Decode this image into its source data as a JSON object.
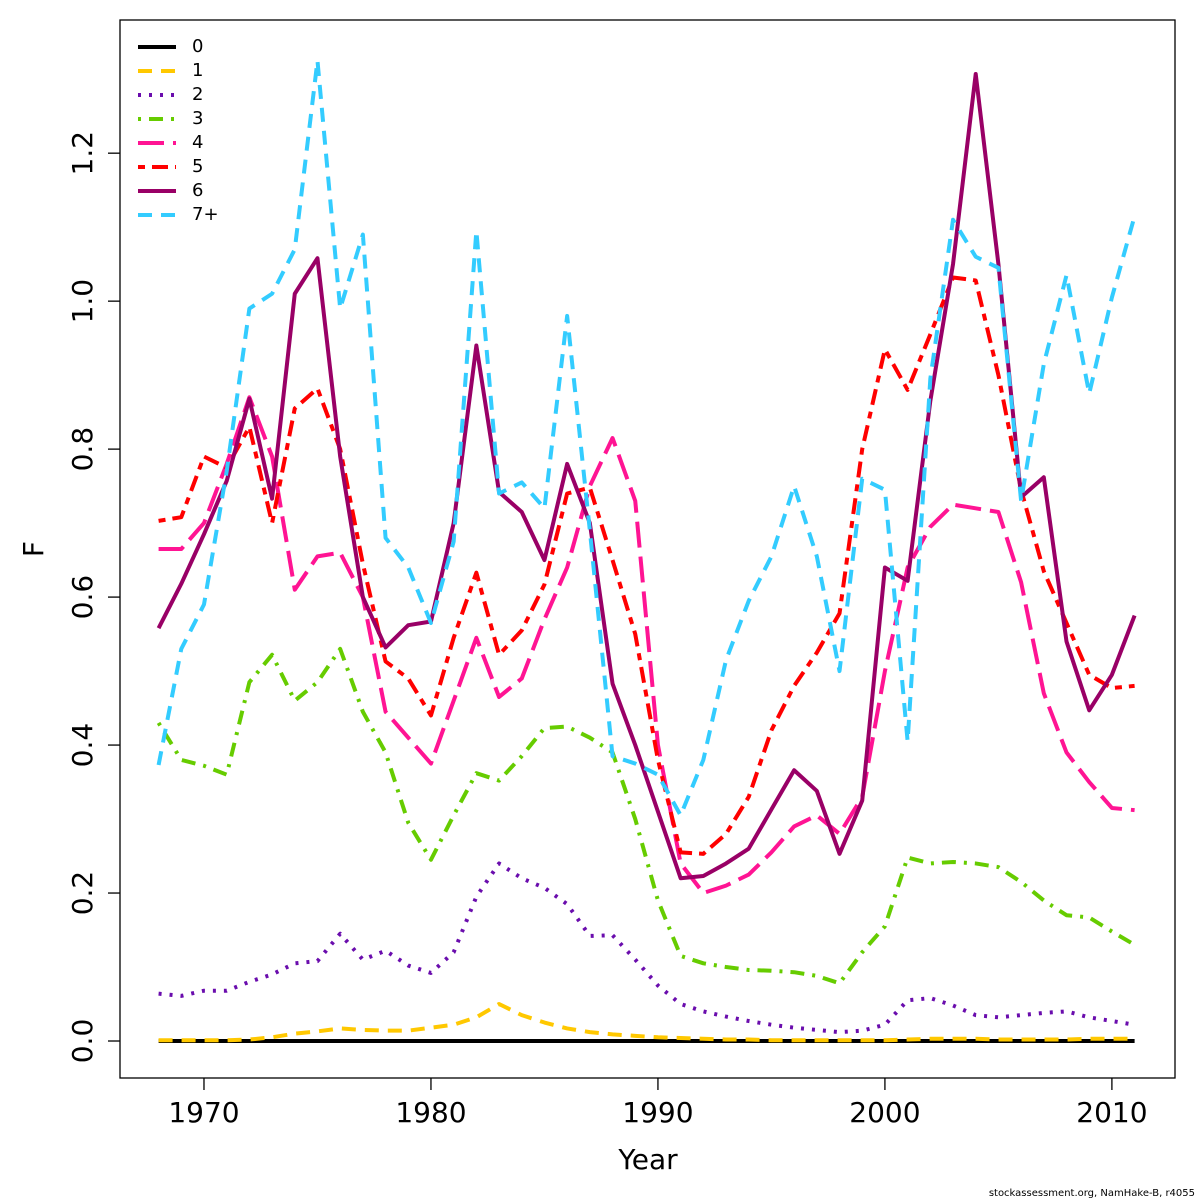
{
  "chart_data": {
    "type": "line",
    "xlabel": "Year",
    "ylabel": "F",
    "footer": "stockassessment.org, NamHake-B, r4055",
    "x": [
      1968,
      1969,
      1970,
      1971,
      1972,
      1973,
      1974,
      1975,
      1976,
      1977,
      1978,
      1979,
      1980,
      1981,
      1982,
      1983,
      1984,
      1985,
      1986,
      1987,
      1988,
      1989,
      1990,
      1991,
      1992,
      1993,
      1994,
      1995,
      1996,
      1997,
      1998,
      1999,
      2000,
      2001,
      2002,
      2003,
      2004,
      2005,
      2006,
      2007,
      2008,
      2009,
      2010,
      2011
    ],
    "xlim": [
      1966.3,
      2012.78
    ],
    "xticks": [
      1970,
      1980,
      1990,
      2000,
      2010
    ],
    "ylim": [
      -0.05,
      1.38
    ],
    "yticks": [
      {
        "value": 0,
        "label": "0.0"
      },
      0.2,
      0.4,
      0.6,
      0.8,
      {
        "value": 1,
        "label": "1.0"
      },
      1.2
    ],
    "legend": "top-left",
    "series": [
      {
        "name": "0",
        "color": "#000000",
        "linestyle": "solid",
        "values": [
          0,
          0,
          0,
          0,
          0,
          0,
          0,
          0,
          0,
          0,
          0,
          0,
          0,
          0,
          0,
          0,
          0,
          0,
          0,
          0,
          0,
          0,
          0,
          0,
          0,
          0,
          0,
          0,
          0,
          0,
          0,
          0,
          0,
          0,
          0,
          0,
          0,
          0,
          0,
          0,
          0,
          0,
          0,
          0
        ]
      },
      {
        "name": "1",
        "color": "#ffc800",
        "linestyle": "dashed",
        "values": [
          0.001,
          0.001,
          0.001,
          0.001,
          0.002,
          0.005,
          0.01,
          0.013,
          0.017,
          0.015,
          0.014,
          0.014,
          0.018,
          0.022,
          0.032,
          0.05,
          0.035,
          0.025,
          0.017,
          0.012,
          0.009,
          0.007,
          0.005,
          0.004,
          0.003,
          0.002,
          0.002,
          0.001,
          0.001,
          0.001,
          0.001,
          0.001,
          0.001,
          0.002,
          0.003,
          0.003,
          0.003,
          0.002,
          0.002,
          0.002,
          0.002,
          0.003,
          0.003,
          0.003
        ]
      },
      {
        "name": "2",
        "color": "#6a0dad",
        "linestyle": "dotted",
        "values": [
          0.064,
          0.061,
          0.068,
          0.068,
          0.08,
          0.09,
          0.105,
          0.108,
          0.145,
          0.11,
          0.122,
          0.102,
          0.092,
          0.12,
          0.195,
          0.24,
          0.22,
          0.207,
          0.185,
          0.142,
          0.143,
          0.11,
          0.075,
          0.05,
          0.04,
          0.033,
          0.027,
          0.022,
          0.018,
          0.015,
          0.012,
          0.014,
          0.022,
          0.055,
          0.058,
          0.048,
          0.035,
          0.032,
          0.035,
          0.038,
          0.04,
          0.032,
          0.027,
          0.022
        ]
      },
      {
        "name": "3",
        "color": "#66cc00",
        "linestyle": "dotdash",
        "values": [
          0.43,
          0.38,
          0.372,
          0.36,
          0.485,
          0.522,
          0.46,
          0.485,
          0.53,
          0.445,
          0.39,
          0.295,
          0.245,
          0.305,
          0.362,
          0.352,
          0.385,
          0.423,
          0.425,
          0.41,
          0.39,
          0.3,
          0.19,
          0.115,
          0.105,
          0.1,
          0.096,
          0.095,
          0.093,
          0.088,
          0.078,
          0.12,
          0.155,
          0.248,
          0.24,
          0.242,
          0.24,
          0.235,
          0.215,
          0.19,
          0.17,
          0.167,
          0.148,
          0.13
        ]
      },
      {
        "name": "4",
        "color": "#ff1493",
        "linestyle": "longdash",
        "values": [
          0.665,
          0.665,
          0.7,
          0.78,
          0.87,
          0.79,
          0.61,
          0.655,
          0.66,
          0.6,
          0.445,
          0.41,
          0.375,
          0.46,
          0.545,
          0.465,
          0.49,
          0.57,
          0.64,
          0.75,
          0.815,
          0.73,
          0.4,
          0.24,
          0.2,
          0.21,
          0.225,
          0.255,
          0.29,
          0.305,
          0.28,
          0.33,
          0.5,
          0.64,
          0.695,
          0.725,
          0.72,
          0.715,
          0.62,
          0.47,
          0.39,
          0.35,
          0.315,
          0.312
        ]
      },
      {
        "name": "5",
        "color": "#ff0000",
        "linestyle": "twodash",
        "values": [
          0.703,
          0.708,
          0.79,
          0.775,
          0.83,
          0.7,
          0.855,
          0.882,
          0.8,
          0.645,
          0.513,
          0.49,
          0.44,
          0.545,
          0.633,
          0.522,
          0.555,
          0.617,
          0.74,
          0.748,
          0.65,
          0.55,
          0.38,
          0.255,
          0.253,
          0.28,
          0.33,
          0.42,
          0.48,
          0.525,
          0.578,
          0.8,
          0.935,
          0.88,
          0.955,
          1.032,
          1.028,
          0.9,
          0.745,
          0.635,
          0.565,
          0.495,
          0.477,
          0.48
        ]
      },
      {
        "name": "6",
        "color": "#990066",
        "linestyle": "solid",
        "values": [
          0.558,
          0.618,
          0.685,
          0.757,
          0.868,
          0.733,
          1.01,
          1.058,
          0.79,
          0.6,
          0.532,
          0.562,
          0.567,
          0.7,
          0.94,
          0.742,
          0.715,
          0.65,
          0.78,
          0.7,
          0.483,
          0.4,
          0.31,
          0.22,
          0.223,
          0.24,
          0.26,
          0.313,
          0.366,
          0.338,
          0.253,
          0.325,
          0.64,
          0.622,
          0.865,
          1.05,
          1.307,
          1.05,
          0.735,
          0.762,
          0.54,
          0.447,
          0.495,
          0.575
        ]
      },
      {
        "name": "7+",
        "color": "#33ccff",
        "linestyle": "dashed",
        "values": [
          0.373,
          0.53,
          0.59,
          0.77,
          0.99,
          1.01,
          1.07,
          1.325,
          0.99,
          1.09,
          0.68,
          0.64,
          0.565,
          0.675,
          1.095,
          0.74,
          0.755,
          0.72,
          0.98,
          0.69,
          0.385,
          0.375,
          0.36,
          0.305,
          0.38,
          0.515,
          0.595,
          0.655,
          0.75,
          0.655,
          0.5,
          0.76,
          0.745,
          0.405,
          0.895,
          1.11,
          1.06,
          1.045,
          0.73,
          0.915,
          1.035,
          0.875,
          1.005,
          1.115
        ]
      }
    ]
  }
}
